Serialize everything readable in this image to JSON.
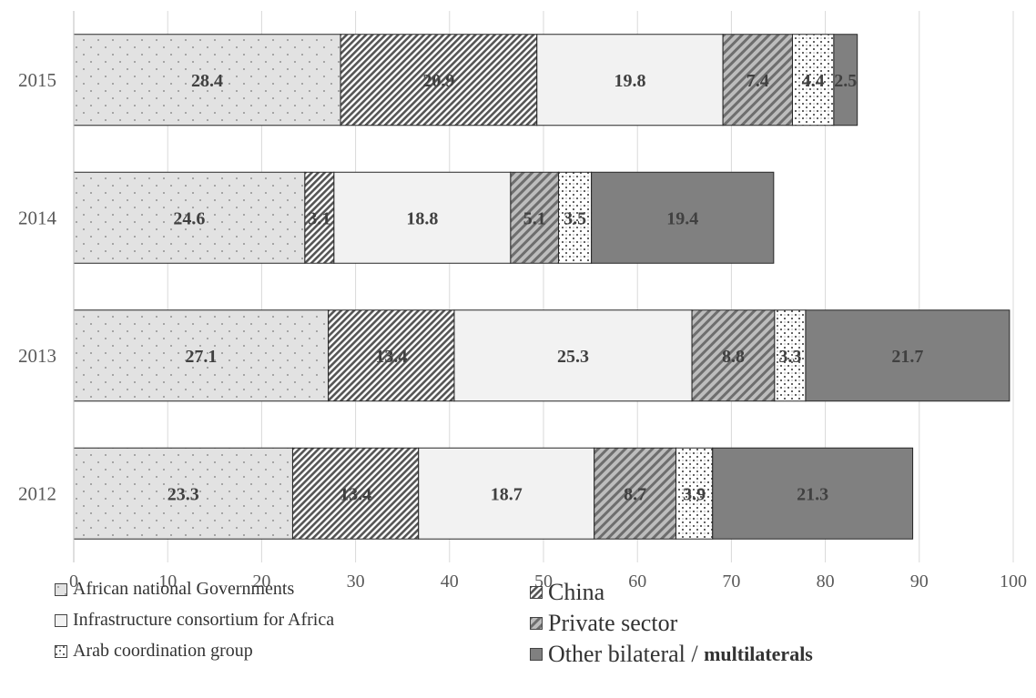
{
  "chart_data": {
    "type": "bar",
    "orientation": "horizontal",
    "stacked": true,
    "title": "",
    "xlabel": "",
    "ylabel": "",
    "xlim": [
      0,
      100
    ],
    "x_ticks": [
      "0",
      "10",
      "20",
      "30",
      "40",
      "50",
      "60",
      "70",
      "80",
      "90",
      "100"
    ],
    "grid": "vertical",
    "legend_position": "bottom",
    "categories": [
      "2015",
      "2014",
      "2013",
      "2012"
    ],
    "series": [
      {
        "name": "African national Governments",
        "color": "#e2e2e2",
        "pattern": "dots",
        "values": [
          28.4,
          24.6,
          27.1,
          23.3
        ],
        "labels": [
          "28.4",
          "24.6",
          "27.1",
          "23.3"
        ]
      },
      {
        "name": "China",
        "color": "#8c8c8c",
        "pattern": "dense-diagonal",
        "values": [
          20.9,
          3.1,
          13.4,
          13.4
        ],
        "labels": [
          "20.9",
          "3.1",
          "13.4",
          "13.4"
        ]
      },
      {
        "name": "Infrastructure consortium for Africa",
        "color": "#f2f2f2",
        "pattern": "solid",
        "values": [
          19.8,
          18.8,
          25.3,
          18.7
        ],
        "labels": [
          "19.8",
          "18.8",
          "25.3",
          "18.7"
        ]
      },
      {
        "name": "Private sector",
        "color": "#999999",
        "pattern": "wide-diagonal",
        "values": [
          7.4,
          5.1,
          8.8,
          8.7
        ],
        "labels": [
          "7.4",
          "5.1",
          "8.8",
          "8.7"
        ]
      },
      {
        "name": "Arab coordination group",
        "color": "#ffffff",
        "pattern": "confetti",
        "values": [
          4.4,
          3.5,
          3.3,
          3.9
        ],
        "labels": [
          "4.4",
          "3.5",
          "3.3",
          "3.9"
        ]
      },
      {
        "name": "Other bilateral /",
        "name_suffix": "multilaterals",
        "color": "#808080",
        "pattern": "solid",
        "values": [
          2.5,
          19.4,
          21.7,
          21.3
        ],
        "labels": [
          "2.5",
          "19.4",
          "21.7",
          "21.3"
        ]
      }
    ]
  }
}
